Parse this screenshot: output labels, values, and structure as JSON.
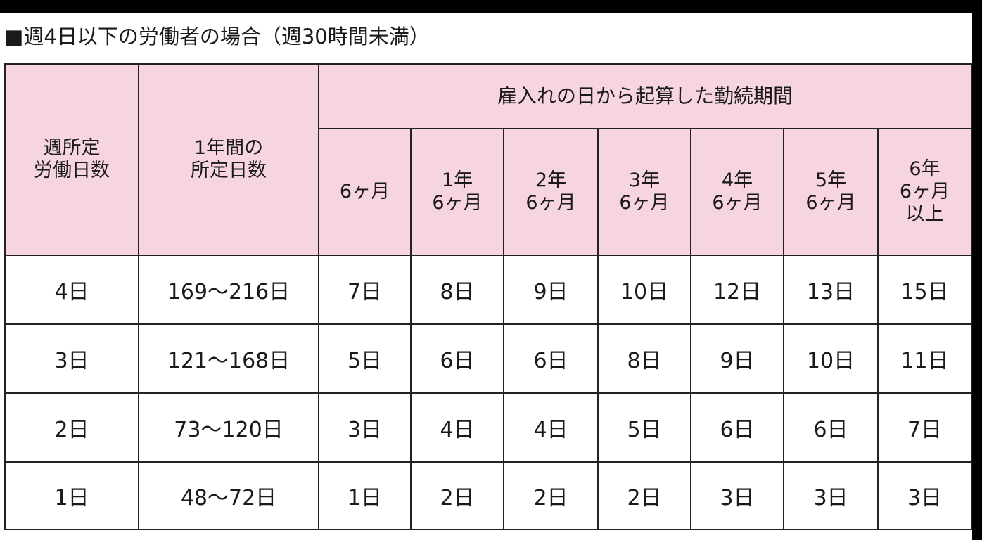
{
  "title": "■週4日以下の労働者の場合（週30時間未満）",
  "table": {
    "col_weekly_days": "週所定\n労働日数",
    "col_annual_days": "1年間の\n所定日数",
    "group_header": "雇入れの日から起算した勤続期間",
    "periods": [
      "6ヶ月",
      "1年\n6ヶ月",
      "2年\n6ヶ月",
      "3年\n6ヶ月",
      "4年\n6ヶ月",
      "5年\n6ヶ月",
      "6年\n6ヶ月\n以上"
    ],
    "rows": [
      {
        "weekly": "4日",
        "annual": "169〜216日",
        "values": [
          "7日",
          "8日",
          "9日",
          "10日",
          "12日",
          "13日",
          "15日"
        ]
      },
      {
        "weekly": "3日",
        "annual": "121〜168日",
        "values": [
          "5日",
          "6日",
          "6日",
          "8日",
          "9日",
          "10日",
          "11日"
        ]
      },
      {
        "weekly": "2日",
        "annual": "73〜120日",
        "values": [
          "3日",
          "4日",
          "4日",
          "5日",
          "6日",
          "6日",
          "7日"
        ]
      },
      {
        "weekly": "1日",
        "annual": "48〜72日",
        "values": [
          "1日",
          "2日",
          "2日",
          "2日",
          "3日",
          "3日",
          "3日"
        ]
      }
    ]
  }
}
